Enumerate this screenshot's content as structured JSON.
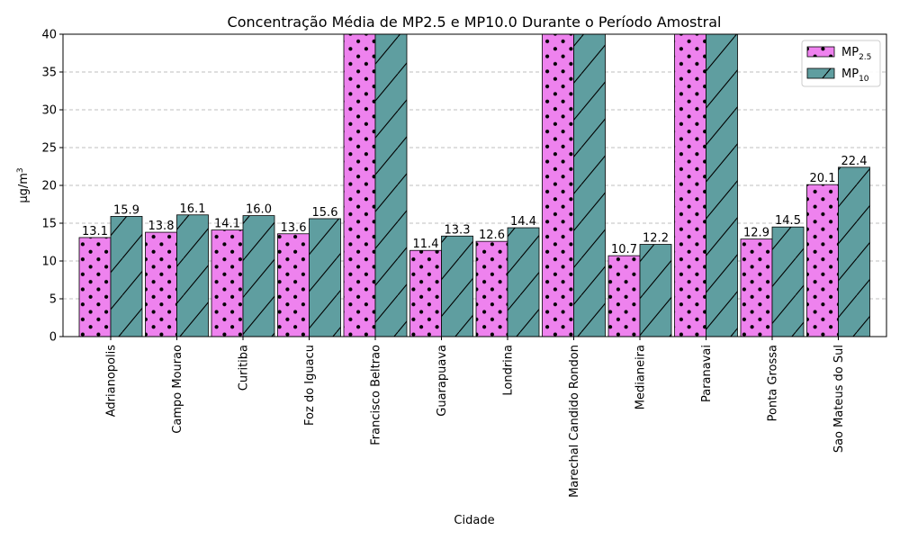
{
  "chart_data": {
    "type": "bar",
    "title": "Concentração Média de MP2.5 e MP10.0 Durante o Período Amostral",
    "xlabel": "Cidade",
    "ylabel": "µg/m³",
    "ylim": [
      0,
      40
    ],
    "yticks": [
      0,
      5,
      10,
      15,
      20,
      25,
      30,
      35,
      40
    ],
    "grid": "horizontal dashed",
    "legend_position": "top-right",
    "categories": [
      "Adrianopolis",
      "Campo Mourao",
      "Curitiba",
      "Foz do Iguacu",
      "Francisco Beltrao",
      "Guarapuava",
      "Londrina",
      "Marechal Candido Rondon",
      "Medianeira",
      "Paranavai",
      "Ponta Grossa",
      "Sao Mateus do Sul"
    ],
    "series": [
      {
        "name": "MP2.5",
        "legend_base": "MP",
        "legend_sub": "2.5",
        "color": "#ee82ee",
        "pattern": "dots",
        "values": [
          13.1,
          13.8,
          14.1,
          13.6,
          40,
          11.4,
          12.6,
          40,
          10.7,
          40,
          12.9,
          20.1
        ],
        "labels": [
          "13.1",
          "13.8",
          "14.1",
          "13.6",
          "",
          "11.4",
          "12.6",
          "",
          "10.7",
          "",
          "12.9",
          "20.1"
        ]
      },
      {
        "name": "MP10",
        "legend_base": "MP",
        "legend_sub": "10",
        "color": "#5f9ea0",
        "pattern": "diagonal-hatch",
        "values": [
          15.9,
          16.1,
          16.0,
          15.6,
          40,
          13.3,
          14.4,
          40,
          12.2,
          40,
          14.5,
          22.4
        ],
        "labels": [
          "15.9",
          "16.1",
          "16.0",
          "15.6",
          "",
          "13.3",
          "14.4",
          "",
          "12.2",
          "",
          "14.5",
          "22.4"
        ]
      }
    ]
  }
}
